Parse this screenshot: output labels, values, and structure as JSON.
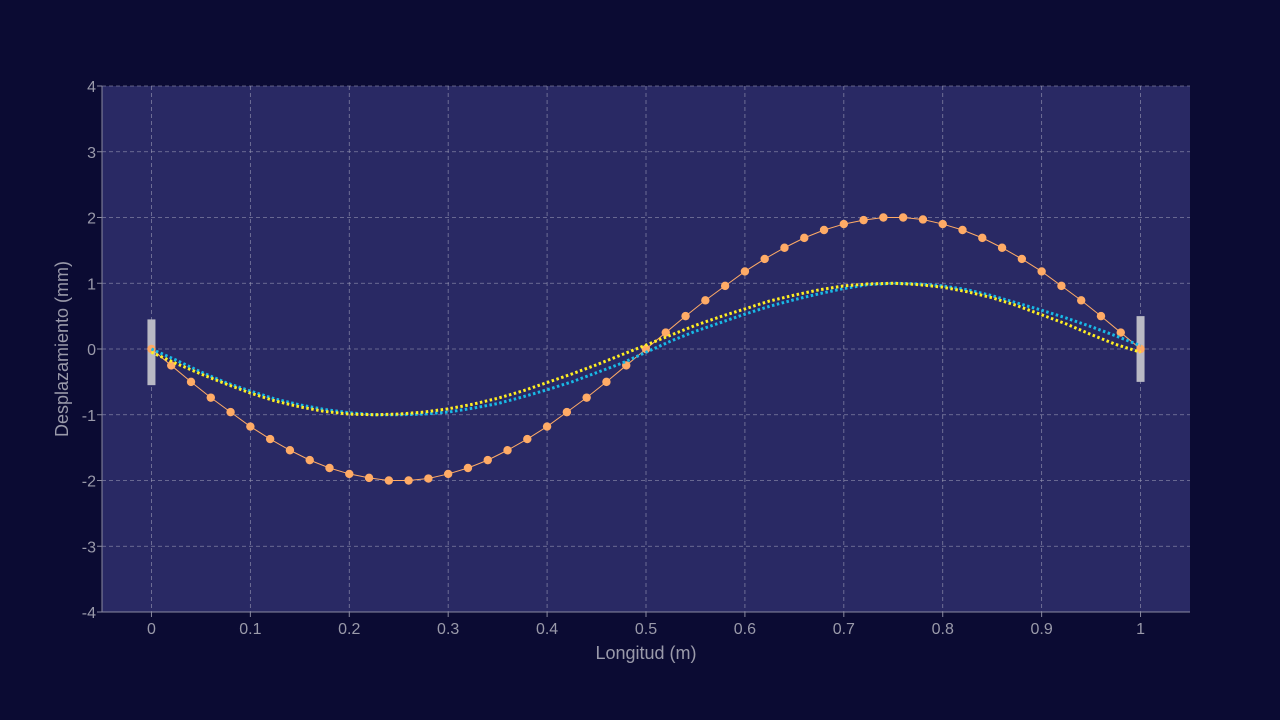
{
  "chart_data": {
    "type": "line",
    "title": "",
    "xlabel": "Longitud (m)",
    "ylabel": "Desplazamiento (mm)",
    "xlim": [
      -0.05,
      1.05
    ],
    "ylim": [
      -4,
      4
    ],
    "x_ticks": [
      0,
      0.1,
      0.2,
      0.3,
      0.4,
      0.5,
      0.6,
      0.7,
      0.8,
      0.9,
      1
    ],
    "x_tick_labels": [
      "0",
      "0.1",
      "0.2",
      "0.3",
      "0.4",
      "0.5",
      "0.6",
      "0.7",
      "0.8",
      "0.9",
      "1"
    ],
    "y_ticks": [
      -4,
      -3,
      -2,
      -1,
      0,
      1,
      2,
      3,
      4
    ],
    "y_tick_labels": [
      "-4",
      "-3",
      "-2",
      "-1",
      "0",
      "1",
      "2",
      "3",
      "4"
    ],
    "grid": true,
    "legend": "none",
    "colors": {
      "page_background": "#0b0b33",
      "plot_background": "#292964",
      "grid": "#9a9ab4",
      "axis": "#8a8aa0",
      "text": "#9a9aaa",
      "supports": "#b9b9c4"
    },
    "supports": [
      {
        "x": 0,
        "y_range": [
          -0.55,
          0.45
        ]
      },
      {
        "x": 1,
        "y_range": [
          -0.5,
          0.5
        ]
      }
    ],
    "series": [
      {
        "style": "line-markers",
        "color": "#ffab66",
        "x": [
          0,
          0.02,
          0.04,
          0.06,
          0.08,
          0.1,
          0.12,
          0.14,
          0.16,
          0.18,
          0.2,
          0.22,
          0.24,
          0.26,
          0.28,
          0.3,
          0.32,
          0.34,
          0.36,
          0.38,
          0.4,
          0.42,
          0.44,
          0.46,
          0.48,
          0.5,
          0.52,
          0.54,
          0.56,
          0.58,
          0.6,
          0.62,
          0.64,
          0.66,
          0.68,
          0.7,
          0.72,
          0.74,
          0.76,
          0.78,
          0.8,
          0.82,
          0.84,
          0.86,
          0.88,
          0.9,
          0.92,
          0.94,
          0.96,
          0.98,
          1
        ],
        "y": [
          0,
          -0.25,
          -0.5,
          -0.74,
          -0.96,
          -1.18,
          -1.37,
          -1.54,
          -1.69,
          -1.81,
          -1.9,
          -1.96,
          -2.0,
          -2.0,
          -1.97,
          -1.9,
          -1.81,
          -1.69,
          -1.54,
          -1.37,
          -1.18,
          -0.96,
          -0.74,
          -0.5,
          -0.25,
          0,
          0.25,
          0.5,
          0.74,
          0.96,
          1.18,
          1.37,
          1.54,
          1.69,
          1.81,
          1.9,
          1.96,
          2.0,
          2.0,
          1.97,
          1.9,
          1.81,
          1.69,
          1.54,
          1.37,
          1.18,
          0.96,
          0.74,
          0.5,
          0.25,
          0
        ]
      },
      {
        "style": "dotted",
        "color": "#19b9e6",
        "x": [
          0,
          0.025,
          0.05,
          0.075,
          0.1,
          0.125,
          0.15,
          0.175,
          0.2,
          0.225,
          0.25,
          0.275,
          0.3,
          0.325,
          0.35,
          0.375,
          0.4,
          0.425,
          0.45,
          0.475,
          0.5,
          0.525,
          0.55,
          0.575,
          0.6,
          0.625,
          0.65,
          0.675,
          0.7,
          0.725,
          0.75,
          0.775,
          0.8,
          0.825,
          0.85,
          0.875,
          0.9,
          0.925,
          0.95,
          0.975,
          1
        ],
        "y": [
          0,
          -0.17,
          -0.35,
          -0.51,
          -0.64,
          -0.76,
          -0.85,
          -0.92,
          -0.97,
          -1.0,
          -1.0,
          -0.99,
          -0.96,
          -0.9,
          -0.83,
          -0.73,
          -0.62,
          -0.5,
          -0.36,
          -0.22,
          -0.05,
          0.12,
          0.27,
          0.4,
          0.53,
          0.65,
          0.75,
          0.84,
          0.92,
          0.98,
          1.0,
          0.99,
          0.96,
          0.9,
          0.81,
          0.7,
          0.59,
          0.47,
          0.34,
          0.2,
          0.05
        ]
      },
      {
        "style": "dotted",
        "color": "#ffee22",
        "x": [
          0,
          0.025,
          0.05,
          0.075,
          0.1,
          0.125,
          0.15,
          0.175,
          0.2,
          0.225,
          0.25,
          0.275,
          0.3,
          0.325,
          0.35,
          0.375,
          0.4,
          0.425,
          0.45,
          0.475,
          0.5,
          0.525,
          0.55,
          0.575,
          0.6,
          0.625,
          0.65,
          0.675,
          0.7,
          0.725,
          0.75,
          0.775,
          0.8,
          0.825,
          0.85,
          0.875,
          0.9,
          0.925,
          0.95,
          0.975,
          1
        ],
        "y": [
          -0.05,
          -0.22,
          -0.38,
          -0.53,
          -0.67,
          -0.79,
          -0.88,
          -0.95,
          -0.99,
          -1.0,
          -0.99,
          -0.96,
          -0.91,
          -0.84,
          -0.75,
          -0.64,
          -0.51,
          -0.38,
          -0.24,
          -0.09,
          0.06,
          0.21,
          0.36,
          0.49,
          0.61,
          0.73,
          0.82,
          0.9,
          0.96,
          0.99,
          1.0,
          0.98,
          0.94,
          0.87,
          0.78,
          0.66,
          0.52,
          0.38,
          0.22,
          0.07,
          -0.05
        ]
      }
    ]
  }
}
